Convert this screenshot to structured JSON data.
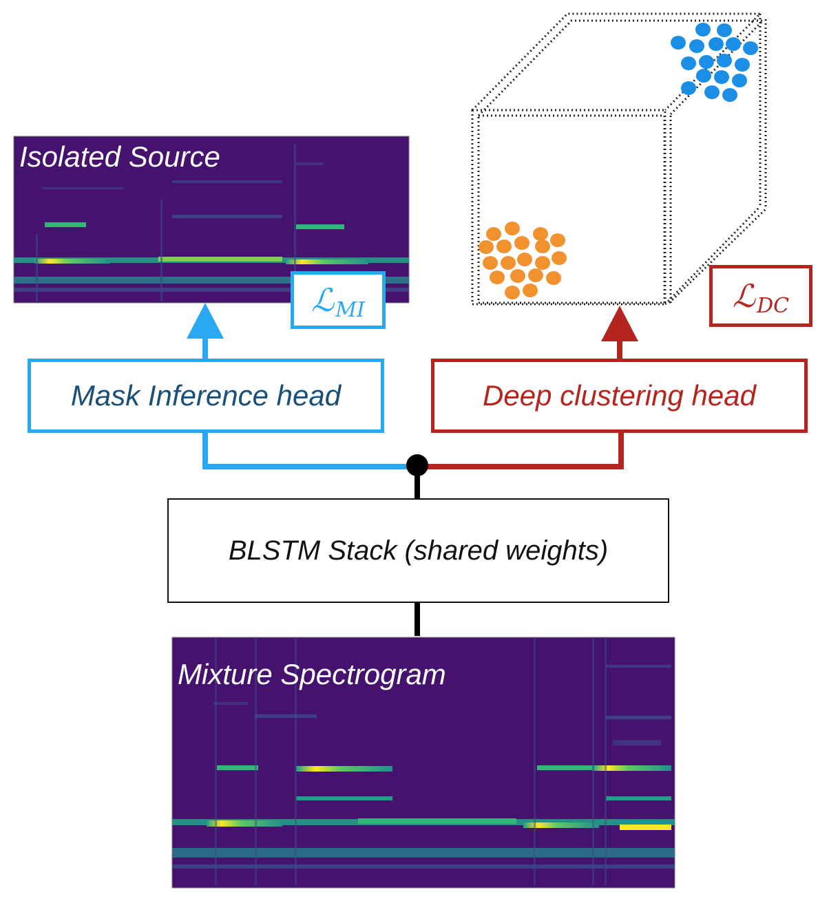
{
  "isolated_source": {
    "title": "Isolated Source"
  },
  "mixture": {
    "title": "Mixture Spectrogram"
  },
  "mi_head": {
    "label": "Mask Inference head"
  },
  "dc_head": {
    "label": "Deep clustering head"
  },
  "blstm": {
    "label": "BLSTM Stack (shared weights)"
  },
  "loss_mi": {
    "symbol": "ℒ",
    "subscript": "MI"
  },
  "loss_dc": {
    "symbol": "ℒ",
    "subscript": "DC"
  },
  "colors": {
    "mi_blue": "#2aa8f2",
    "mi_text": "#1a4f78",
    "dc_red": "#b3251e",
    "spectrogram_bg": "#45136e",
    "cluster_orange": "#f2922f",
    "cluster_blue": "#1b8fe6"
  }
}
